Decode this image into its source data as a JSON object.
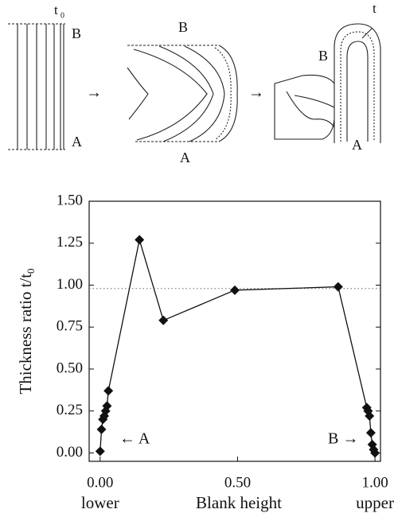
{
  "diagram": {
    "labels": [
      "t",
      "0",
      "B",
      "A",
      "→",
      "B",
      "A",
      "→",
      "B",
      "A",
      "t"
    ]
  },
  "chart_data": {
    "type": "line",
    "ylabel": "Thickness ratio t/t",
    "ylabel_subscript": "0",
    "xlabel": "Blank height",
    "xlabel_left": "lower",
    "xlabel_right": "upper",
    "annotations": [
      "← A",
      "B →"
    ],
    "xlim": [
      -0.04,
      1.02
    ],
    "xticks": [
      {
        "value": 0,
        "label": "0.00"
      },
      {
        "value": 0.5,
        "label": "0.50"
      },
      {
        "value": 1,
        "label": "1.00"
      }
    ],
    "ylim": [
      -0.05,
      1.5
    ],
    "yticks": [
      {
        "value": 0,
        "label": "0.00"
      },
      {
        "value": 0.25,
        "label": "0.25"
      },
      {
        "value": 0.5,
        "label": "0.50"
      },
      {
        "value": 0.75,
        "label": "0.75"
      },
      {
        "value": 1,
        "label": "1.00"
      },
      {
        "value": 1.25,
        "label": "1.25"
      },
      {
        "value": 1.5,
        "label": "1.50"
      }
    ],
    "reference_line": 0.98,
    "grid": false,
    "series": [
      {
        "color": "#111111",
        "x": [
          0.0,
          0.005,
          0.01,
          0.015,
          0.02,
          0.025,
          0.03,
          0.143,
          0.23,
          0.49,
          0.866,
          0.97,
          0.975,
          0.98,
          0.985,
          0.99,
          0.995,
          1.0
        ],
        "values": [
          0.01,
          0.14,
          0.2,
          0.22,
          0.25,
          0.28,
          0.37,
          1.27,
          0.79,
          0.97,
          0.99,
          0.27,
          0.25,
          0.22,
          0.12,
          0.05,
          0.02,
          0.0
        ]
      }
    ]
  }
}
